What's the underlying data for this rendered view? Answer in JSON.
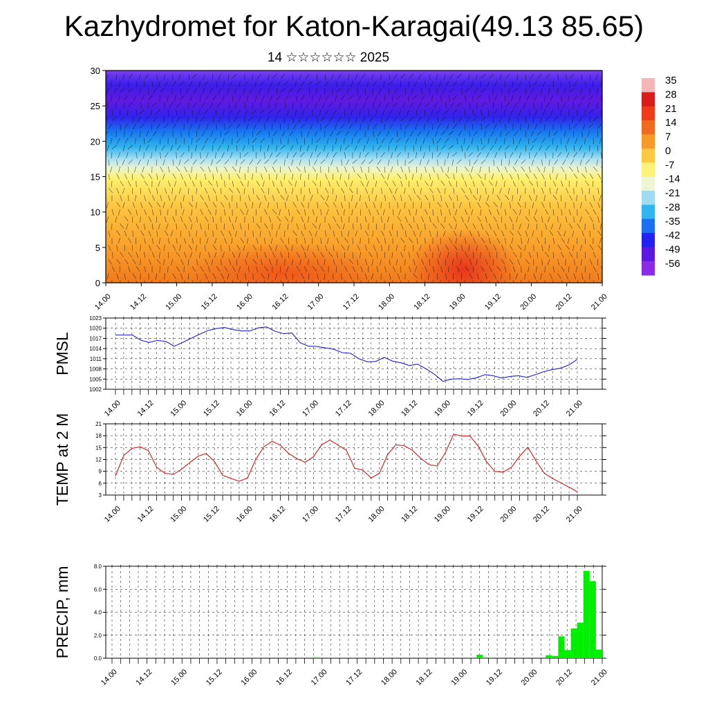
{
  "header": {
    "title": "Kazhydromet for Katon-Karagai(49.13 85.65)",
    "subtitle": "14 ☆☆☆☆☆☆ 2025"
  },
  "chart_data": [
    {
      "type": "heatmap",
      "name": "Vertical cross-section temperature with wind",
      "x_labels": [
        "14.00",
        "14.12",
        "15.00",
        "15.12",
        "16.00",
        "16.12",
        "17.00",
        "17.12",
        "18.00",
        "18.12",
        "19.00",
        "19.12",
        "20.00",
        "20.12",
        "21.00"
      ],
      "yticks": [
        0,
        5,
        10,
        15,
        20,
        25,
        30
      ],
      "ylim": [
        0,
        30
      ],
      "colorbar_labels": [
        "35",
        "28",
        "21",
        "14",
        "7",
        "0",
        "-7",
        "-14",
        "-21",
        "-28",
        "-35",
        "-42",
        "-49",
        "-56"
      ],
      "colorbar_colors": [
        "#f4b6b6",
        "#d81c1c",
        "#ee3b1a",
        "#f26a1e",
        "#f89a2a",
        "#fcc944",
        "#fff27a",
        "#eef6d4",
        "#9fdcf0",
        "#30b6ec",
        "#1c6ff0",
        "#2420f0",
        "#5a18e0",
        "#8a2be8"
      ]
    },
    {
      "type": "line",
      "ylabel": "PMSL",
      "x_labels": [
        "14.00",
        "14.12",
        "15.00",
        "15.12",
        "16.00",
        "16.12",
        "17.00",
        "17.12",
        "18.00",
        "18.12",
        "19.00",
        "19.12",
        "20.00",
        "20.12",
        "21.00"
      ],
      "yticks": [
        1002,
        1005,
        1008,
        1011,
        1014,
        1017,
        1020,
        1023
      ],
      "ylim": [
        1002,
        1023
      ],
      "color": "#1f1fd6",
      "values": [
        1018,
        1018,
        1018,
        1016.5,
        1015.8,
        1016.4,
        1016.1,
        1014.7,
        1015.8,
        1017.0,
        1018.2,
        1019.3,
        1019.9,
        1020.2,
        1019.6,
        1019.2,
        1019.2,
        1020.1,
        1020.4,
        1019.1,
        1018.4,
        1018.6,
        1015.7,
        1014.7,
        1014.6,
        1014.2,
        1013.8,
        1012.8,
        1012.6,
        1011.0,
        1010.1,
        1010.2,
        1011.4,
        1010.3,
        1009.8,
        1009.0,
        1009.4,
        1008.0,
        1006.4,
        1004.3,
        1005.0,
        1005.1,
        1004.9,
        1005.4,
        1006.3,
        1006.0,
        1005.3,
        1005.8,
        1006.0,
        1005.5,
        1006.3,
        1007.2,
        1007.8,
        1008.2,
        1009.2,
        1010.8
      ]
    },
    {
      "type": "line",
      "ylabel": "TEMP at 2 M",
      "x_labels": [
        "14.00",
        "14.12",
        "15.00",
        "15.12",
        "16.00",
        "16.12",
        "17.00",
        "17.12",
        "18.00",
        "18.12",
        "19.00",
        "19.12",
        "20.00",
        "20.12",
        "21.00"
      ],
      "yticks": [
        3,
        6,
        9,
        12,
        15,
        18,
        21
      ],
      "ylim": [
        3,
        21
      ],
      "color": "#d81818",
      "values": [
        7.8,
        13,
        14.8,
        15.2,
        14.2,
        10,
        8.5,
        8.2,
        9.5,
        11.2,
        12.8,
        13.5,
        11.5,
        8,
        7.2,
        6.5,
        7.3,
        12,
        15.2,
        16.6,
        15.6,
        13.5,
        12.2,
        11.3,
        12.7,
        15.7,
        16.9,
        15.6,
        14.3,
        9.8,
        9.3,
        7.3,
        8.5,
        13.2,
        15.7,
        15.5,
        14.3,
        12.3,
        10.7,
        10.3,
        13.7,
        18.4,
        17.9,
        17.9,
        15.3,
        11.4,
        9,
        8.8,
        10,
        12.8,
        15.1,
        11.6,
        8.5,
        7.2,
        6.1,
        5,
        3.8
      ]
    },
    {
      "type": "bar",
      "ylabel": "PRECIP, mm",
      "x_labels": [
        "14.00",
        "14.12",
        "15.00",
        "15.12",
        "16.00",
        "16.12",
        "17.00",
        "17.12",
        "18.00",
        "18.12",
        "19.00",
        "19.12",
        "20.00",
        "20.12",
        "21.00"
      ],
      "yticks": [
        "0.0",
        "2.0",
        "4.0",
        "6.0",
        "8.0"
      ],
      "ylim": [
        0,
        8
      ],
      "color": "#00ee00",
      "values": [
        0,
        0,
        0,
        0,
        0,
        0,
        0,
        0,
        0,
        0,
        0,
        0,
        0,
        0,
        0,
        0,
        0,
        0,
        0,
        0,
        0,
        0,
        0,
        0,
        0,
        0,
        0,
        0,
        0,
        0,
        0,
        0,
        0.08,
        0,
        0,
        0,
        0,
        0,
        0,
        0,
        0,
        0,
        0,
        0,
        0,
        0,
        0,
        0,
        0,
        0,
        0,
        0,
        0,
        0,
        0,
        0,
        0,
        0,
        0.3,
        0.08,
        0,
        0,
        0,
        0,
        0,
        0,
        0,
        0,
        0,
        0.25,
        0.2,
        1.9,
        0.7,
        2.6,
        3.1,
        7.6,
        6.7,
        0.75
      ]
    }
  ]
}
